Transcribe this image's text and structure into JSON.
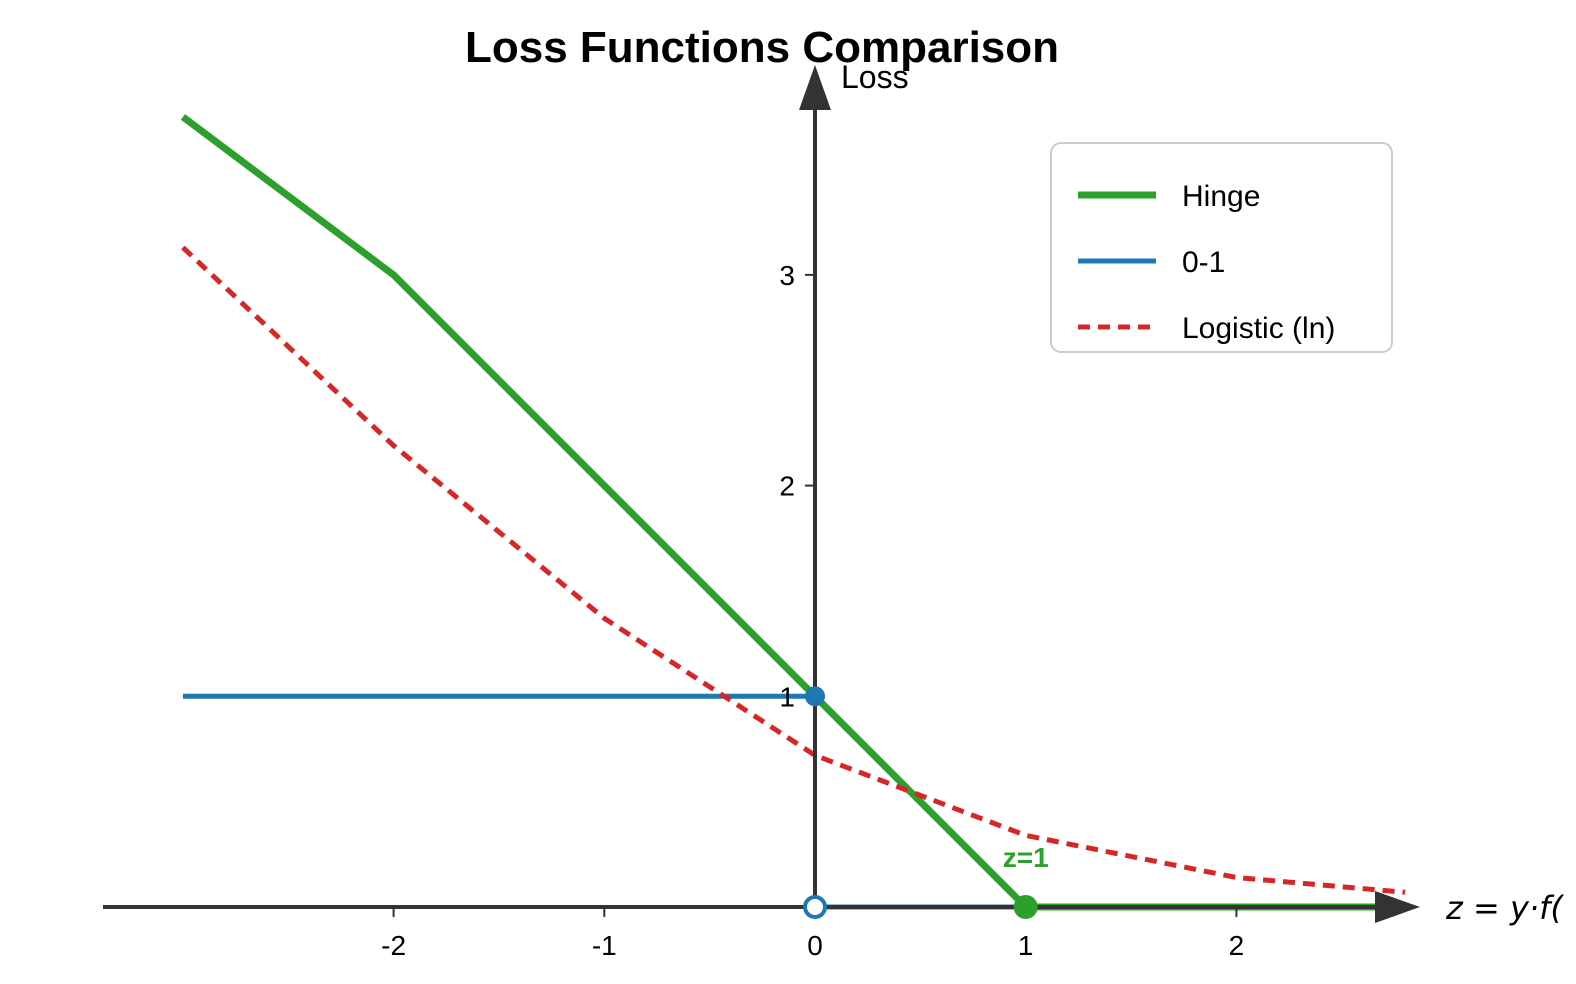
{
  "chart_data": {
    "type": "line",
    "title": "Loss Functions Comparison",
    "ylabel": "Loss",
    "xlabel": "z = y·f(",
    "xlim": [
      -3.4,
      3.0
    ],
    "ylim": [
      -0.25,
      4.0
    ],
    "x_ticks": [
      -2,
      -1,
      0,
      1,
      2
    ],
    "x_tick_labels": [
      "-2",
      "-1",
      "0",
      "1",
      "2"
    ],
    "y_ticks": [
      1,
      2,
      3
    ],
    "y_tick_labels": [
      "1",
      "2",
      "3"
    ],
    "legend_position": "top-right",
    "grid": false,
    "series": [
      {
        "name": "Hinge",
        "color": "#2ca02c",
        "style": "solid",
        "x": [
          -3.0,
          -2.0,
          -1.0,
          0.0,
          1.0,
          2.0,
          2.8
        ],
        "y": [
          3.75,
          3.0,
          2.0,
          1.0,
          0.0,
          0.0,
          0.0
        ]
      },
      {
        "name": "0-1",
        "color": "#1f77b4",
        "style": "solid",
        "segments": [
          {
            "x": [
              -3.0,
              0.0
            ],
            "y": [
              1.0,
              1.0
            ]
          },
          {
            "x": [
              0.0,
              0.0
            ],
            "y": [
              1.0,
              0.0
            ]
          },
          {
            "x": [
              0.0,
              2.8
            ],
            "y": [
              0.0,
              0.0
            ]
          }
        ]
      },
      {
        "name": "Logistic (ln)",
        "color": "#d62728",
        "style": "dashed",
        "x": [
          -3.0,
          -2.0,
          -1.0,
          0.0,
          1.0,
          2.0,
          2.8
        ],
        "y": [
          3.13,
          2.19,
          1.37,
          0.72,
          0.34,
          0.14,
          0.07
        ]
      }
    ],
    "markers": [
      {
        "name": "zero-one-filled-dot",
        "x": 0,
        "y": 1,
        "color": "#1f77b4",
        "filled": true
      },
      {
        "name": "zero-one-open-dot",
        "x": 0,
        "y": 0,
        "color": "#1f77b4",
        "filled": false
      },
      {
        "name": "hinge-kink-dot",
        "x": 1,
        "y": 0,
        "color": "#2ca02c",
        "filled": true
      }
    ],
    "annotations": [
      {
        "text": "z=1",
        "x": 1,
        "y": 0,
        "color": "#2ca02c"
      }
    ]
  }
}
